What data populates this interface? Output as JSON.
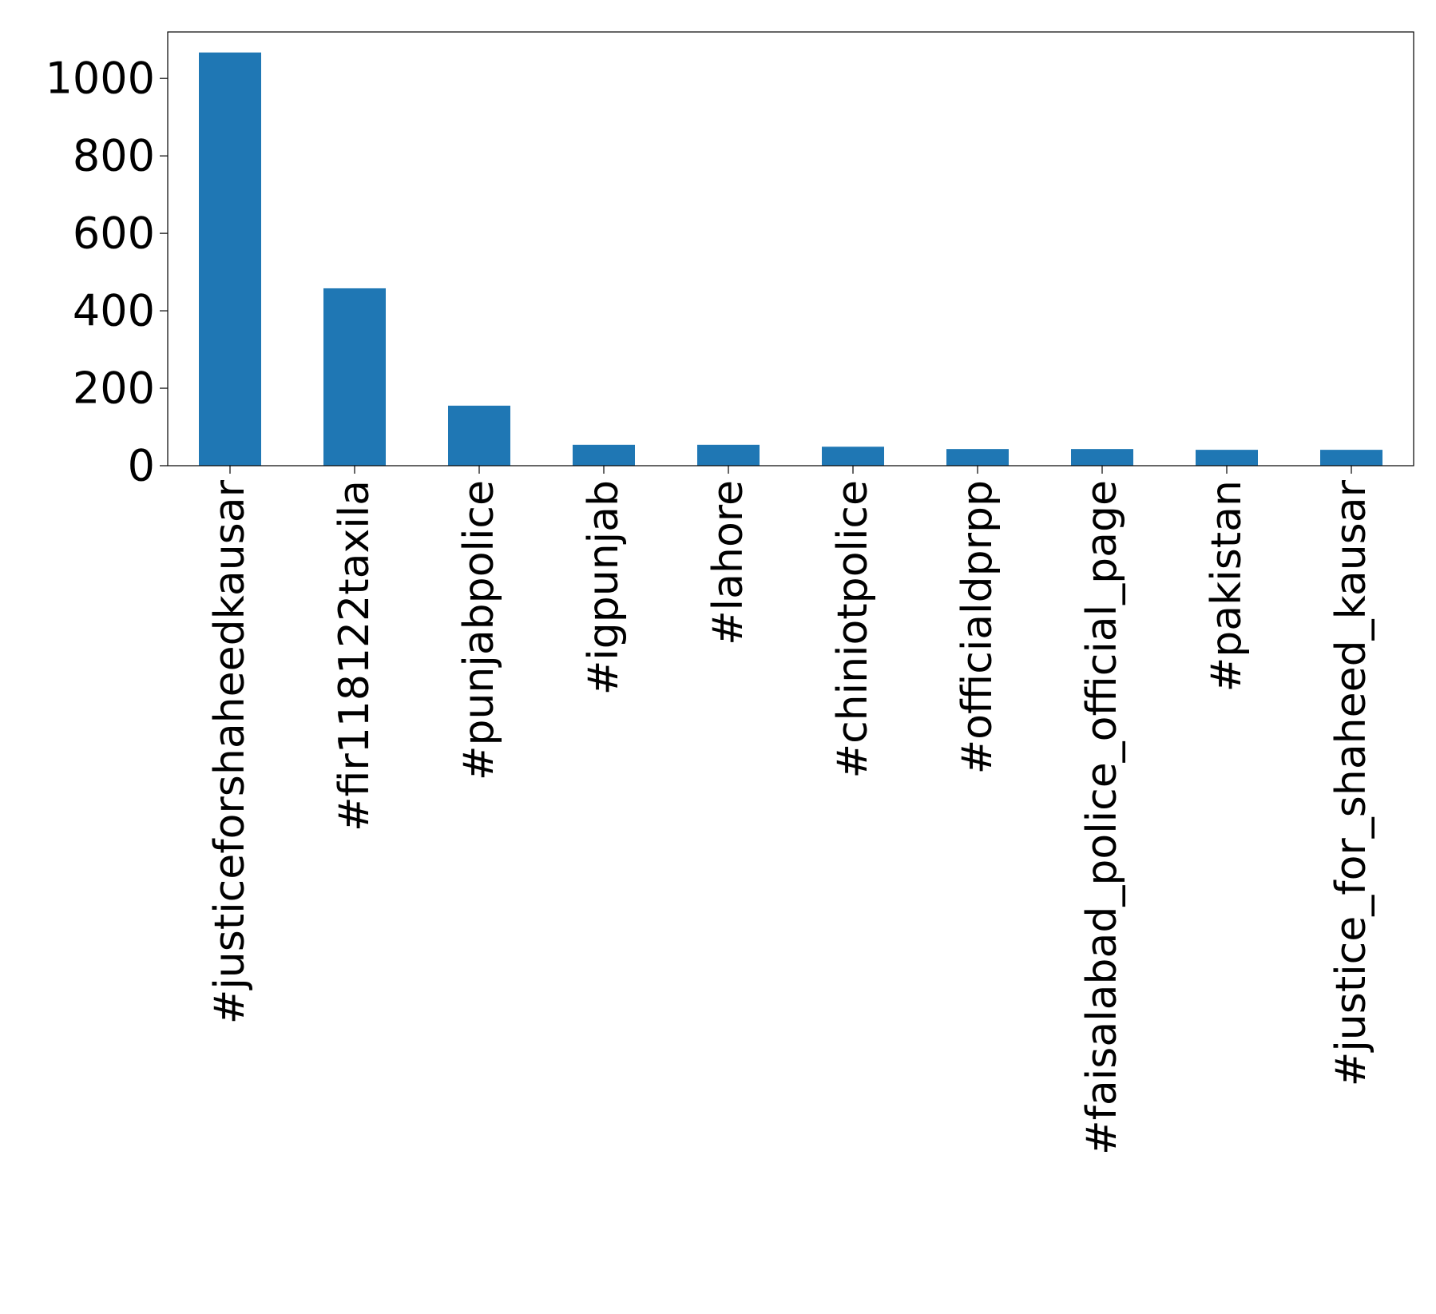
{
  "chart_data": {
    "type": "bar",
    "title": "",
    "xlabel": "",
    "ylabel": "",
    "categories": [
      "#justiceforshaheedkausar",
      "#fir118122taxila",
      "#punjabpolice",
      "#igpunjab",
      "#lahore",
      "#chiniotpolice",
      "#officialdprpp",
      "#faisalabad_police_official_page",
      "#pakistan",
      "#justice_for_shaheed_kausar"
    ],
    "values": [
      1067,
      458,
      155,
      54,
      54,
      49,
      43,
      43,
      41,
      41
    ],
    "ylim": [
      0,
      1120
    ],
    "yticks": [
      0,
      200,
      400,
      600,
      800,
      1000
    ],
    "bar_color": "#1f77b4",
    "grid": false,
    "legend": false
  }
}
